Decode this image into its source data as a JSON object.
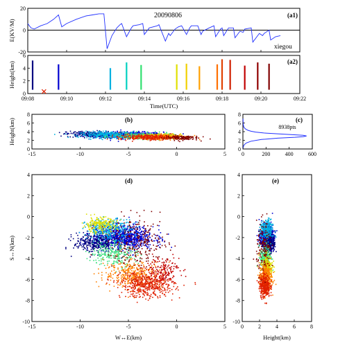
{
  "figure": {
    "date": "20090806",
    "station": "xiegou",
    "npoints": "8938pts"
  },
  "chart_data": [
    {
      "panel": "a1",
      "panel_label": "(a1)",
      "type": "line",
      "ylabel": "E(KV/M)",
      "ylim": [
        -20,
        20
      ],
      "yticks": [
        "20",
        "0",
        "-20"
      ],
      "x_range": [
        "09:08",
        "09:22"
      ],
      "series": [
        {
          "x": [
            "09:08:00",
            "09:08:05",
            "09:08:10",
            "09:08:20",
            "09:08:40",
            "09:09:00",
            "09:09:20",
            "09:09:35",
            "09:09:45",
            "09:10:00",
            "09:10:30",
            "09:11:00",
            "09:11:20",
            "09:11:40",
            "09:11:55",
            "09:12:05",
            "09:12:20",
            "09:12:35",
            "09:12:45",
            "09:12:50",
            "09:13:05",
            "09:13:20",
            "09:13:25",
            "09:13:45",
            "09:13:55",
            "09:14:00",
            "09:14:15",
            "09:14:40",
            "09:14:45",
            "09:15:05",
            "09:15:15",
            "09:15:20",
            "09:15:35",
            "09:15:45",
            "09:15:55",
            "09:16:10",
            "09:16:20",
            "09:16:25",
            "09:16:45",
            "09:16:55",
            "09:17:00",
            "09:17:20",
            "09:17:35",
            "09:17:40",
            "09:17:55",
            "09:18:00",
            "09:18:05",
            "09:18:20",
            "09:18:35",
            "09:18:40",
            "09:18:55",
            "09:19:05",
            "09:19:10",
            "09:19:30",
            "09:19:35",
            "09:19:55",
            "09:20:05",
            "09:20:10",
            "09:20:25",
            "09:20:30",
            "09:20:45",
            "09:21:00"
          ],
          "y": [
            6,
            4,
            2,
            1,
            4,
            6,
            10,
            14,
            3,
            6,
            10,
            13,
            14,
            15,
            15,
            -17,
            -5,
            2,
            5,
            6,
            -6,
            2,
            4,
            5,
            6,
            -4,
            2,
            4,
            5,
            -10,
            -3,
            -5,
            1,
            3,
            4,
            -4,
            2,
            4,
            4,
            -4,
            -1,
            2,
            4,
            -6,
            1,
            2,
            -5,
            2,
            2,
            -7,
            -1,
            -2,
            1,
            2,
            -11,
            -3,
            -5,
            -3,
            0,
            -9,
            -6,
            -5
          ]
        }
      ]
    },
    {
      "panel": "a2",
      "panel_label": "(a2)",
      "type": "scatter",
      "xlabel": "Time(UTC)",
      "ylabel": "Height(km)",
      "ylim": [
        0,
        6
      ],
      "xticks": [
        "09:08",
        "09:10",
        "09:12",
        "09:14",
        "09:16",
        "09:18",
        "09:20",
        "09:22"
      ],
      "yticks": [
        "0",
        "2",
        "4",
        "6"
      ],
      "flashes": [
        {
          "t": "09:08:15",
          "top": 5.2,
          "color": "#000080"
        },
        {
          "t": "09:09:35",
          "top": 4.6,
          "color": "#0000d0"
        },
        {
          "t": "09:12:15",
          "top": 4.0,
          "color": "#00b0e0"
        },
        {
          "t": "09:13:05",
          "top": 4.9,
          "color": "#00d0c0"
        },
        {
          "t": "09:13:50",
          "top": 4.5,
          "color": "#30e070"
        },
        {
          "t": "09:15:40",
          "top": 4.6,
          "color": "#e0e000"
        },
        {
          "t": "09:16:10",
          "top": 4.7,
          "color": "#f0d000"
        },
        {
          "t": "09:16:50",
          "top": 4.3,
          "color": "#ffa000"
        },
        {
          "t": "09:17:45",
          "top": 4.6,
          "color": "#ff7000"
        },
        {
          "t": "09:18:00",
          "top": 5.4,
          "color": "#e04000"
        },
        {
          "t": "09:18:25",
          "top": 5.3,
          "color": "#d02000"
        },
        {
          "t": "09:19:10",
          "top": 4.4,
          "color": "#c00000"
        },
        {
          "t": "09:19:50",
          "top": 4.9,
          "color": "#900000"
        },
        {
          "t": "09:20:25",
          "top": 4.7,
          "color": "#800000"
        }
      ],
      "marker": {
        "t": "09:08:50",
        "h": 0.1,
        "symbol": "x",
        "color": "#e02000"
      }
    },
    {
      "panel": "b",
      "panel_label": "(b)",
      "type": "scatter",
      "ylabel": "Height(km)",
      "xlim": [
        -15,
        5
      ],
      "ylim": [
        0,
        8
      ],
      "xticks": [
        "-15",
        "-10",
        "-5",
        "0",
        "5"
      ],
      "yticks": [
        "0",
        "2",
        "4",
        "6",
        "8"
      ],
      "clusters": [
        {
          "cx": -5.0,
          "cy": 3.2,
          "sx": 3.0,
          "sy": 0.6,
          "n": 700,
          "color": "#0000d0"
        },
        {
          "cx": -9.0,
          "cy": 3.4,
          "sx": 2.0,
          "sy": 0.6,
          "n": 200,
          "color": "#000080"
        },
        {
          "cx": -7.0,
          "cy": 3.3,
          "sx": 2.5,
          "sy": 0.6,
          "n": 300,
          "color": "#00b0e0"
        },
        {
          "cx": -3.5,
          "cy": 3.0,
          "sx": 2.5,
          "sy": 0.6,
          "n": 250,
          "color": "#40e080"
        },
        {
          "cx": -2.0,
          "cy": 2.9,
          "sx": 2.0,
          "sy": 0.5,
          "n": 200,
          "color": "#e0e000"
        },
        {
          "cx": -1.0,
          "cy": 2.8,
          "sx": 2.0,
          "sy": 0.5,
          "n": 250,
          "color": "#ff8000"
        },
        {
          "cx": -3.0,
          "cy": 2.7,
          "sx": 2.5,
          "sy": 0.5,
          "n": 250,
          "color": "#e02000"
        },
        {
          "cx": 0.5,
          "cy": 2.6,
          "sx": 1.5,
          "sy": 0.5,
          "n": 120,
          "color": "#800000"
        }
      ]
    },
    {
      "panel": "c",
      "panel_label": "(c)",
      "type": "line",
      "annotation": "8938pts",
      "xlim": [
        0,
        600
      ],
      "ylim": [
        0,
        8
      ],
      "xticks": [
        "0",
        "200",
        "400",
        "600"
      ],
      "yticks": [
        "0",
        "2",
        "4",
        "6",
        "8"
      ],
      "series": [
        {
          "x": [
            0,
            2,
            5,
            12,
            30,
            70,
            160,
            300,
            450,
            520,
            550,
            520,
            430,
            300,
            180,
            110,
            70,
            45,
            30,
            20,
            12,
            8,
            5,
            3,
            2,
            1
          ],
          "y": [
            0,
            0.3,
            0.6,
            1.0,
            1.4,
            1.8,
            2.2,
            2.5,
            2.7,
            2.85,
            3.0,
            3.15,
            3.3,
            3.5,
            3.7,
            3.9,
            4.1,
            4.3,
            4.5,
            4.7,
            4.9,
            5.1,
            5.4,
            5.8,
            6.3,
            7.0
          ]
        }
      ]
    },
    {
      "panel": "d",
      "panel_label": "(d)",
      "type": "scatter",
      "xlabel": "W↔E(km)",
      "ylabel": "S↔N(km)",
      "xlim": [
        -15,
        5
      ],
      "ylim": [
        -10,
        4
      ],
      "xticks": [
        "-15",
        "-10",
        "-5",
        "0",
        "5"
      ],
      "yticks": [
        "-10",
        "-8",
        "-6",
        "-4",
        "-2",
        "0",
        "2",
        "4"
      ],
      "clusters": [
        {
          "cx": -5.5,
          "cy": -2.0,
          "sx": 2.6,
          "sy": 0.9,
          "n": 900,
          "color": "#0000d0"
        },
        {
          "cx": -8.5,
          "cy": -2.5,
          "sx": 1.8,
          "sy": 0.8,
          "n": 300,
          "color": "#000080"
        },
        {
          "cx": -7.0,
          "cy": -1.2,
          "sx": 2.0,
          "sy": 0.8,
          "n": 300,
          "color": "#00b0e0"
        },
        {
          "cx": -6.5,
          "cy": -3.5,
          "sx": 2.0,
          "sy": 1.0,
          "n": 250,
          "color": "#40e080"
        },
        {
          "cx": -8.0,
          "cy": -0.8,
          "sx": 1.5,
          "sy": 0.6,
          "n": 200,
          "color": "#e0e000"
        },
        {
          "cx": -4.5,
          "cy": -5.5,
          "sx": 2.5,
          "sy": 1.1,
          "n": 350,
          "color": "#ff8000"
        },
        {
          "cx": -3.0,
          "cy": -6.5,
          "sx": 2.3,
          "sy": 1.0,
          "n": 500,
          "color": "#e02000"
        },
        {
          "cx": -4.0,
          "cy": -2.5,
          "sx": 2.6,
          "sy": 2.0,
          "n": 250,
          "color": "#800000"
        },
        {
          "cx": -1.5,
          "cy": -5.0,
          "sx": 1.5,
          "sy": 1.0,
          "n": 150,
          "color": "#c00000"
        }
      ]
    },
    {
      "panel": "e",
      "panel_label": "(e)",
      "type": "scatter",
      "xlabel": "Height(km)",
      "xlim": [
        0,
        8
      ],
      "ylim": [
        -10,
        4
      ],
      "xticks": [
        "0",
        "2",
        "4",
        "6",
        "8"
      ],
      "yticks": [
        "-10",
        "-8",
        "-6",
        "-4",
        "-2",
        "0",
        "2",
        "4"
      ],
      "clusters": [
        {
          "cx": 2.8,
          "cy": -2.0,
          "sx": 0.6,
          "sy": 0.9,
          "n": 800,
          "color": "#0000d0"
        },
        {
          "cx": 3.2,
          "cy": -2.5,
          "sx": 0.5,
          "sy": 0.8,
          "n": 250,
          "color": "#000080"
        },
        {
          "cx": 2.8,
          "cy": -1.3,
          "sx": 0.6,
          "sy": 0.8,
          "n": 250,
          "color": "#00b0e0"
        },
        {
          "cx": 2.7,
          "cy": -3.8,
          "sx": 0.5,
          "sy": 1.0,
          "n": 250,
          "color": "#40e080"
        },
        {
          "cx": 2.9,
          "cy": -4.8,
          "sx": 0.5,
          "sy": 0.9,
          "n": 200,
          "color": "#e0e000"
        },
        {
          "cx": 2.7,
          "cy": -5.8,
          "sx": 0.6,
          "sy": 1.1,
          "n": 350,
          "color": "#ff8000"
        },
        {
          "cx": 2.6,
          "cy": -6.6,
          "sx": 0.5,
          "sy": 0.9,
          "n": 350,
          "color": "#e02000"
        },
        {
          "cx": 2.5,
          "cy": -3.0,
          "sx": 0.7,
          "sy": 2.0,
          "n": 150,
          "color": "#800000"
        }
      ]
    }
  ]
}
